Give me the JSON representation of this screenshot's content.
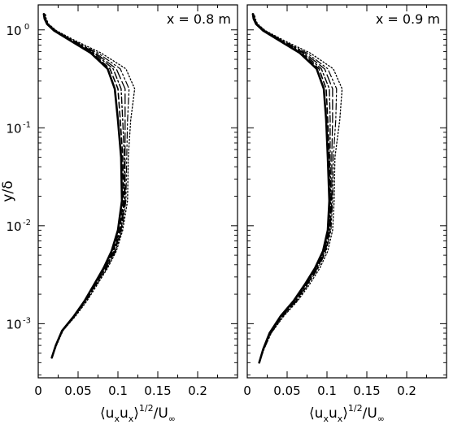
{
  "chart_data": [
    {
      "type": "line",
      "annotation": "x = 0.8 m",
      "xlabel": "⟨uₓuₓ⟩^1/2/U∞",
      "ylabel": "y/δ",
      "xscale": "linear",
      "yscale": "log",
      "xlim": [
        0,
        0.25
      ],
      "ylim": [
        0.00028,
        1.8
      ],
      "xticks": [
        0,
        0.05,
        0.1,
        0.15,
        0.2
      ],
      "xtick_labels": [
        "0",
        "0.05",
        "0.1",
        "0.15",
        "0.2"
      ],
      "yticks": [
        0.001,
        0.01,
        0.1,
        1
      ],
      "ytick_labels": [
        {
          "base": "10",
          "exp": "-3"
        },
        {
          "base": "10",
          "exp": "-2"
        },
        {
          "base": "10",
          "exp": "-1"
        },
        {
          "base": "10",
          "exp": "0"
        }
      ],
      "legend": "none",
      "grid": false,
      "series": [
        {
          "style": "solid",
          "points": [
            [
              0.017,
              0.00045
            ],
            [
              0.022,
              0.0006
            ],
            [
              0.03,
              0.00085
            ],
            [
              0.045,
              0.0012
            ],
            [
              0.058,
              0.0017
            ],
            [
              0.07,
              0.0025
            ],
            [
              0.082,
              0.0037
            ],
            [
              0.092,
              0.0055
            ],
            [
              0.1,
              0.009
            ],
            [
              0.105,
              0.018
            ],
            [
              0.104,
              0.05
            ],
            [
              0.1,
              0.12
            ],
            [
              0.096,
              0.25
            ],
            [
              0.087,
              0.4
            ],
            [
              0.066,
              0.58
            ],
            [
              0.04,
              0.78
            ],
            [
              0.02,
              0.98
            ],
            [
              0.011,
              1.15
            ],
            [
              0.008,
              1.3
            ],
            [
              0.007,
              1.45
            ]
          ]
        },
        {
          "style": "dash",
          "points": [
            [
              0.017,
              0.00045
            ],
            [
              0.022,
              0.0006
            ],
            [
              0.03,
              0.00085
            ],
            [
              0.045,
              0.0012
            ],
            [
              0.058,
              0.0017
            ],
            [
              0.07,
              0.0025
            ],
            [
              0.083,
              0.0037
            ],
            [
              0.094,
              0.0055
            ],
            [
              0.102,
              0.009
            ],
            [
              0.107,
              0.018
            ],
            [
              0.106,
              0.05
            ],
            [
              0.103,
              0.12
            ],
            [
              0.1,
              0.25
            ],
            [
              0.09,
              0.4
            ],
            [
              0.068,
              0.58
            ],
            [
              0.041,
              0.78
            ],
            [
              0.02,
              0.98
            ],
            [
              0.011,
              1.15
            ],
            [
              0.008,
              1.3
            ],
            [
              0.007,
              1.45
            ]
          ]
        },
        {
          "style": "dashdot",
          "points": [
            [
              0.017,
              0.00045
            ],
            [
              0.022,
              0.0006
            ],
            [
              0.03,
              0.00085
            ],
            [
              0.045,
              0.0012
            ],
            [
              0.058,
              0.0017
            ],
            [
              0.071,
              0.0025
            ],
            [
              0.084,
              0.0037
            ],
            [
              0.095,
              0.0055
            ],
            [
              0.103,
              0.009
            ],
            [
              0.108,
              0.018
            ],
            [
              0.108,
              0.05
            ],
            [
              0.106,
              0.12
            ],
            [
              0.104,
              0.25
            ],
            [
              0.094,
              0.4
            ],
            [
              0.07,
              0.58
            ],
            [
              0.042,
              0.78
            ],
            [
              0.021,
              0.98
            ],
            [
              0.012,
              1.15
            ],
            [
              0.009,
              1.3
            ],
            [
              0.008,
              1.45
            ]
          ]
        },
        {
          "style": "longdash",
          "points": [
            [
              0.017,
              0.00045
            ],
            [
              0.022,
              0.0006
            ],
            [
              0.031,
              0.00085
            ],
            [
              0.046,
              0.0012
            ],
            [
              0.059,
              0.0017
            ],
            [
              0.072,
              0.0025
            ],
            [
              0.085,
              0.0037
            ],
            [
              0.096,
              0.0055
            ],
            [
              0.104,
              0.009
            ],
            [
              0.109,
              0.018
            ],
            [
              0.109,
              0.05
            ],
            [
              0.109,
              0.12
            ],
            [
              0.109,
              0.25
            ],
            [
              0.098,
              0.4
            ],
            [
              0.072,
              0.58
            ],
            [
              0.043,
              0.78
            ],
            [
              0.022,
              0.98
            ],
            [
              0.012,
              1.15
            ],
            [
              0.009,
              1.3
            ],
            [
              0.008,
              1.45
            ]
          ]
        },
        {
          "style": "dashdotdot",
          "points": [
            [
              0.017,
              0.00045
            ],
            [
              0.022,
              0.0006
            ],
            [
              0.031,
              0.00085
            ],
            [
              0.046,
              0.0012
            ],
            [
              0.06,
              0.0017
            ],
            [
              0.073,
              0.0025
            ],
            [
              0.086,
              0.0037
            ],
            [
              0.097,
              0.0055
            ],
            [
              0.105,
              0.009
            ],
            [
              0.11,
              0.018
            ],
            [
              0.111,
              0.05
            ],
            [
              0.112,
              0.12
            ],
            [
              0.114,
              0.25
            ],
            [
              0.103,
              0.4
            ],
            [
              0.075,
              0.58
            ],
            [
              0.044,
              0.78
            ],
            [
              0.022,
              0.98
            ],
            [
              0.012,
              1.15
            ],
            [
              0.009,
              1.3
            ],
            [
              0.008,
              1.45
            ]
          ]
        },
        {
          "style": "dot",
          "points": [
            [
              0.017,
              0.00045
            ],
            [
              0.023,
              0.0006
            ],
            [
              0.031,
              0.00085
            ],
            [
              0.047,
              0.0012
            ],
            [
              0.061,
              0.0017
            ],
            [
              0.074,
              0.0025
            ],
            [
              0.087,
              0.0037
            ],
            [
              0.098,
              0.0055
            ],
            [
              0.106,
              0.009
            ],
            [
              0.112,
              0.018
            ],
            [
              0.113,
              0.05
            ],
            [
              0.116,
              0.12
            ],
            [
              0.121,
              0.25
            ],
            [
              0.11,
              0.4
            ],
            [
              0.079,
              0.58
            ],
            [
              0.046,
              0.78
            ],
            [
              0.023,
              0.98
            ],
            [
              0.013,
              1.15
            ],
            [
              0.01,
              1.3
            ],
            [
              0.009,
              1.45
            ]
          ]
        }
      ]
    },
    {
      "type": "line",
      "annotation": "x = 0.9 m",
      "xlabel": "⟨uₓuₓ⟩^1/2/U∞",
      "ylabel": "",
      "xscale": "linear",
      "yscale": "log",
      "xlim": [
        0,
        0.25
      ],
      "ylim": [
        0.00028,
        1.8
      ],
      "xticks": [
        0,
        0.05,
        0.1,
        0.15,
        0.2
      ],
      "xtick_labels": [
        "0",
        "0.05",
        "0.1",
        "0.15",
        "0.2"
      ],
      "yticks": [
        0.001,
        0.01,
        0.1,
        1
      ],
      "legend": "none",
      "grid": false,
      "series": [
        {
          "style": "solid",
          "points": [
            [
              0.015,
              0.0004
            ],
            [
              0.02,
              0.00055
            ],
            [
              0.028,
              0.0008
            ],
            [
              0.042,
              0.0012
            ],
            [
              0.058,
              0.0017
            ],
            [
              0.072,
              0.0025
            ],
            [
              0.085,
              0.0037
            ],
            [
              0.095,
              0.0055
            ],
            [
              0.101,
              0.009
            ],
            [
              0.103,
              0.018
            ],
            [
              0.101,
              0.05
            ],
            [
              0.099,
              0.12
            ],
            [
              0.096,
              0.25
            ],
            [
              0.087,
              0.4
            ],
            [
              0.066,
              0.58
            ],
            [
              0.04,
              0.78
            ],
            [
              0.02,
              0.98
            ],
            [
              0.011,
              1.15
            ],
            [
              0.008,
              1.3
            ],
            [
              0.007,
              1.45
            ]
          ]
        },
        {
          "style": "dash",
          "points": [
            [
              0.015,
              0.0004
            ],
            [
              0.02,
              0.00055
            ],
            [
              0.028,
              0.0008
            ],
            [
              0.043,
              0.0012
            ],
            [
              0.059,
              0.0017
            ],
            [
              0.073,
              0.0025
            ],
            [
              0.086,
              0.0037
            ],
            [
              0.096,
              0.0055
            ],
            [
              0.102,
              0.009
            ],
            [
              0.104,
              0.018
            ],
            [
              0.103,
              0.05
            ],
            [
              0.101,
              0.12
            ],
            [
              0.099,
              0.25
            ],
            [
              0.09,
              0.4
            ],
            [
              0.068,
              0.58
            ],
            [
              0.041,
              0.78
            ],
            [
              0.02,
              0.98
            ],
            [
              0.011,
              1.15
            ],
            [
              0.008,
              1.3
            ],
            [
              0.007,
              1.45
            ]
          ]
        },
        {
          "style": "dashdot",
          "points": [
            [
              0.015,
              0.0004
            ],
            [
              0.02,
              0.00055
            ],
            [
              0.029,
              0.0008
            ],
            [
              0.043,
              0.0012
            ],
            [
              0.06,
              0.0017
            ],
            [
              0.074,
              0.0025
            ],
            [
              0.087,
              0.0037
            ],
            [
              0.097,
              0.0055
            ],
            [
              0.103,
              0.009
            ],
            [
              0.105,
              0.018
            ],
            [
              0.104,
              0.05
            ],
            [
              0.104,
              0.12
            ],
            [
              0.103,
              0.25
            ],
            [
              0.093,
              0.4
            ],
            [
              0.07,
              0.58
            ],
            [
              0.042,
              0.78
            ],
            [
              0.021,
              0.98
            ],
            [
              0.012,
              1.15
            ],
            [
              0.009,
              1.3
            ],
            [
              0.008,
              1.45
            ]
          ]
        },
        {
          "style": "longdash",
          "points": [
            [
              0.015,
              0.0004
            ],
            [
              0.02,
              0.00055
            ],
            [
              0.029,
              0.0008
            ],
            [
              0.044,
              0.0012
            ],
            [
              0.061,
              0.0017
            ],
            [
              0.075,
              0.0025
            ],
            [
              0.088,
              0.0037
            ],
            [
              0.098,
              0.0055
            ],
            [
              0.104,
              0.009
            ],
            [
              0.106,
              0.018
            ],
            [
              0.106,
              0.05
            ],
            [
              0.107,
              0.12
            ],
            [
              0.107,
              0.25
            ],
            [
              0.097,
              0.4
            ],
            [
              0.072,
              0.58
            ],
            [
              0.043,
              0.78
            ],
            [
              0.022,
              0.98
            ],
            [
              0.012,
              1.15
            ],
            [
              0.009,
              1.3
            ],
            [
              0.008,
              1.45
            ]
          ]
        },
        {
          "style": "dashdotdot",
          "points": [
            [
              0.015,
              0.0004
            ],
            [
              0.021,
              0.00055
            ],
            [
              0.03,
              0.0008
            ],
            [
              0.045,
              0.0012
            ],
            [
              0.062,
              0.0017
            ],
            [
              0.076,
              0.0025
            ],
            [
              0.089,
              0.0037
            ],
            [
              0.099,
              0.0055
            ],
            [
              0.105,
              0.009
            ],
            [
              0.107,
              0.018
            ],
            [
              0.108,
              0.05
            ],
            [
              0.111,
              0.12
            ],
            [
              0.112,
              0.25
            ],
            [
              0.101,
              0.4
            ],
            [
              0.075,
              0.58
            ],
            [
              0.044,
              0.78
            ],
            [
              0.022,
              0.98
            ],
            [
              0.012,
              1.15
            ],
            [
              0.009,
              1.3
            ],
            [
              0.008,
              1.45
            ]
          ]
        },
        {
          "style": "dot",
          "points": [
            [
              0.015,
              0.0004
            ],
            [
              0.021,
              0.00055
            ],
            [
              0.03,
              0.0008
            ],
            [
              0.046,
              0.0012
            ],
            [
              0.063,
              0.0017
            ],
            [
              0.078,
              0.0025
            ],
            [
              0.091,
              0.0037
            ],
            [
              0.101,
              0.0055
            ],
            [
              0.107,
              0.009
            ],
            [
              0.109,
              0.018
            ],
            [
              0.11,
              0.05
            ],
            [
              0.116,
              0.12
            ],
            [
              0.119,
              0.25
            ],
            [
              0.108,
              0.4
            ],
            [
              0.079,
              0.58
            ],
            [
              0.046,
              0.78
            ],
            [
              0.023,
              0.98
            ],
            [
              0.013,
              1.15
            ],
            [
              0.01,
              1.3
            ],
            [
              0.009,
              1.45
            ]
          ]
        }
      ]
    }
  ],
  "axis_text": {
    "xlabel_main": "⟨u",
    "xlabel_sub1": "x",
    "xlabel_mid": "u",
    "xlabel_sub2": "x",
    "xlabel_rangle": "⟩",
    "xlabel_sup": "1/2",
    "xlabel_tail": "/U",
    "xlabel_sub3": "∞",
    "ylabel": "y/δ"
  }
}
